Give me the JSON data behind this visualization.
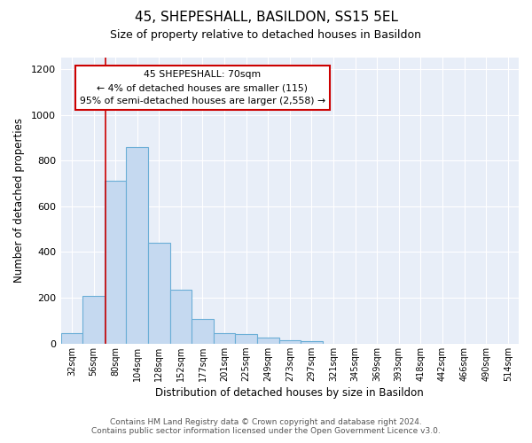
{
  "title": "45, SHEPESHALL, BASILDON, SS15 5EL",
  "subtitle": "Size of property relative to detached houses in Basildon",
  "xlabel": "Distribution of detached houses by size in Basildon",
  "ylabel": "Number of detached properties",
  "footnote1": "Contains HM Land Registry data © Crown copyright and database right 2024.",
  "footnote2": "Contains public sector information licensed under the Open Government Licence v3.0.",
  "annotation_title": "45 SHEPESHALL: 70sqm",
  "annotation_line2": "← 4% of detached houses are smaller (115)",
  "annotation_line3": "95% of semi-detached houses are larger (2,558) →",
  "bar_values": [
    47,
    210,
    710,
    860,
    440,
    235,
    107,
    47,
    43,
    27,
    15,
    10,
    0,
    0,
    0,
    0,
    0,
    0,
    0,
    0,
    0
  ],
  "categories": [
    "32sqm",
    "56sqm",
    "80sqm",
    "104sqm",
    "128sqm",
    "152sqm",
    "177sqm",
    "201sqm",
    "225sqm",
    "249sqm",
    "273sqm",
    "297sqm",
    "321sqm",
    "345sqm",
    "369sqm",
    "393sqm",
    "418sqm",
    "442sqm",
    "466sqm",
    "490sqm",
    "514sqm"
  ],
  "bar_color": "#c5d9f0",
  "bar_edge_color": "#6aaed6",
  "fig_bg_color": "#ffffff",
  "plot_bg_color": "#e8eef8",
  "grid_color": "#ffffff",
  "red_line_x": 1.55,
  "annotation_box_color": "#ffffff",
  "annotation_box_edge": "#cc0000",
  "ylim": [
    0,
    1250
  ],
  "yticks": [
    0,
    200,
    400,
    600,
    800,
    1000,
    1200
  ]
}
